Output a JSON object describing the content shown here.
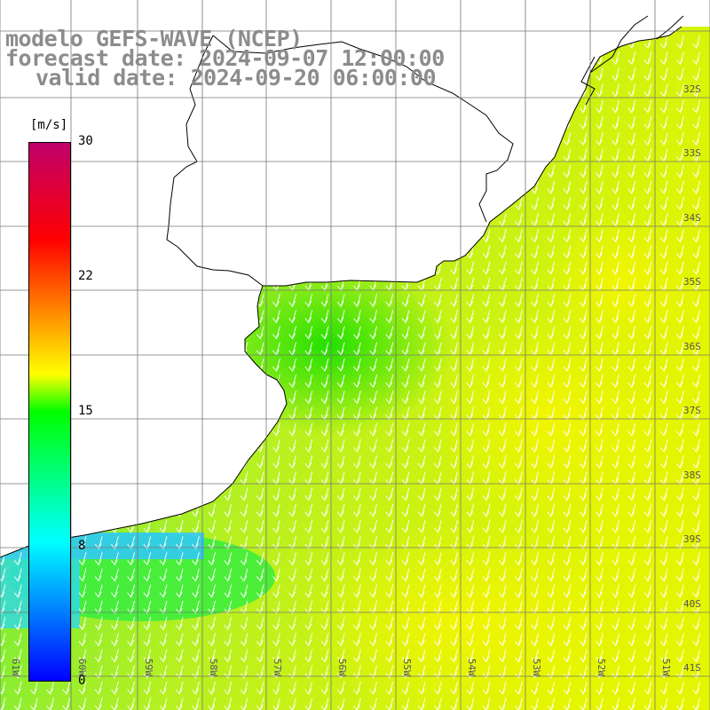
{
  "title": {
    "line1": "modelo GEFS-WAVE (NCEP)",
    "line2": "forecast date: 2024-09-07 12:00:00",
    "line3": "valid date: 2024-09-20 06:00:00"
  },
  "colorbar": {
    "unit": "[m/s]",
    "ticks": [
      "30",
      "22",
      "15",
      "8",
      "0"
    ],
    "colors": [
      "#0000ff",
      "#00ffff",
      "#00ff00",
      "#ffff00",
      "#ff0000",
      "#c0006a"
    ]
  },
  "latitude_labels": [
    "32S",
    "33S",
    "34S",
    "35S",
    "36S",
    "37S",
    "38S",
    "39S",
    "40S",
    "41S"
  ],
  "longitude_labels": [
    "61W",
    "60W",
    "59W",
    "58W",
    "57W",
    "56W",
    "55W",
    "54W",
    "53W",
    "52W",
    "51W"
  ]
}
